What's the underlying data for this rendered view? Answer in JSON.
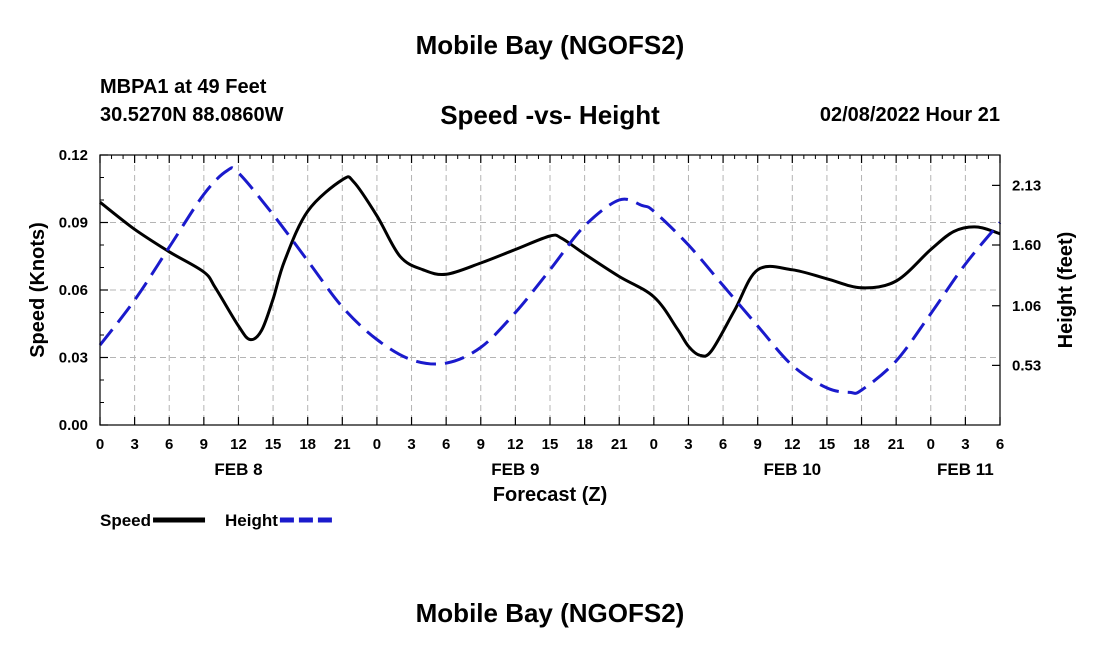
{
  "header": {
    "title": "Mobile Bay (NGOFS2)",
    "station": "MBPA1 at 49 Feet",
    "coords": "30.5270N  88.0860W",
    "subtitle": "Speed -vs- Height",
    "date": "02/08/2022 Hour 21"
  },
  "footer": {
    "title": "Mobile Bay (NGOFS2)"
  },
  "chart_data": {
    "type": "line",
    "xlabel": "Forecast (Z)",
    "ylabel": "Speed (Knots)",
    "y2label": "Height (feet)",
    "x_range_hours": [
      0,
      78
    ],
    "ylim": [
      0,
      0.12
    ],
    "y2lim": [
      0,
      2.4
    ],
    "x_ticks": [
      {
        "h": 0,
        "label": "0"
      },
      {
        "h": 3,
        "label": "3"
      },
      {
        "h": 6,
        "label": "6"
      },
      {
        "h": 9,
        "label": "9"
      },
      {
        "h": 12,
        "label": "12"
      },
      {
        "h": 15,
        "label": "15"
      },
      {
        "h": 18,
        "label": "18"
      },
      {
        "h": 21,
        "label": "21"
      },
      {
        "h": 24,
        "label": "0"
      },
      {
        "h": 27,
        "label": "3"
      },
      {
        "h": 30,
        "label": "6"
      },
      {
        "h": 33,
        "label": "9"
      },
      {
        "h": 36,
        "label": "12"
      },
      {
        "h": 39,
        "label": "15"
      },
      {
        "h": 42,
        "label": "18"
      },
      {
        "h": 45,
        "label": "21"
      },
      {
        "h": 48,
        "label": "0"
      },
      {
        "h": 51,
        "label": "3"
      },
      {
        "h": 54,
        "label": "6"
      },
      {
        "h": 57,
        "label": "9"
      },
      {
        "h": 60,
        "label": "12"
      },
      {
        "h": 63,
        "label": "15"
      },
      {
        "h": 66,
        "label": "18"
      },
      {
        "h": 69,
        "label": "21"
      },
      {
        "h": 72,
        "label": "0"
      },
      {
        "h": 75,
        "label": "3"
      },
      {
        "h": 78,
        "label": "6"
      }
    ],
    "day_labels": [
      {
        "h": 12,
        "label": "FEB 8"
      },
      {
        "h": 36,
        "label": "FEB 9"
      },
      {
        "h": 60,
        "label": "FEB 10"
      },
      {
        "h": 75,
        "label": "FEB 11"
      }
    ],
    "y_ticks": [
      {
        "v": 0.0,
        "label": "0.00"
      },
      {
        "v": 0.03,
        "label": "0.03"
      },
      {
        "v": 0.06,
        "label": "0.06"
      },
      {
        "v": 0.09,
        "label": "0.09"
      },
      {
        "v": 0.12,
        "label": "0.12"
      }
    ],
    "y2_ticks": [
      {
        "v": 0.53,
        "label": "0.53"
      },
      {
        "v": 1.06,
        "label": "1.06"
      },
      {
        "v": 1.6,
        "label": "1.60"
      },
      {
        "v": 2.13,
        "label": "2.13"
      }
    ],
    "series": [
      {
        "name": "Speed",
        "axis": "left",
        "color": "#000000",
        "dash": "solid",
        "x": [
          0,
          3,
          6,
          9,
          10,
          12,
          13,
          14,
          15,
          16,
          18,
          21,
          22,
          24,
          26,
          28,
          30,
          33,
          36,
          39,
          40,
          42,
          45,
          48,
          50,
          51,
          52,
          53,
          55,
          57,
          60,
          63,
          66,
          69,
          72,
          74,
          76,
          78
        ],
        "values": [
          0.099,
          0.087,
          0.077,
          0.068,
          0.061,
          0.044,
          0.038,
          0.042,
          0.056,
          0.073,
          0.095,
          0.109,
          0.108,
          0.093,
          0.075,
          0.069,
          0.067,
          0.072,
          0.078,
          0.084,
          0.083,
          0.076,
          0.066,
          0.057,
          0.043,
          0.035,
          0.031,
          0.033,
          0.051,
          0.069,
          0.069,
          0.065,
          0.061,
          0.064,
          0.078,
          0.086,
          0.088,
          0.085
        ]
      },
      {
        "name": "Height",
        "axis": "right",
        "color": "#1a1acc",
        "dash": "dashed",
        "x": [
          0,
          3,
          6,
          9,
          11,
          12,
          15,
          18,
          21,
          24,
          27,
          30,
          33,
          36,
          39,
          42,
          45,
          47,
          48,
          51,
          54,
          57,
          60,
          63,
          65,
          66,
          69,
          72,
          75,
          78
        ],
        "values": [
          0.71,
          1.11,
          1.58,
          2.05,
          2.26,
          2.24,
          1.87,
          1.46,
          1.05,
          0.76,
          0.58,
          0.55,
          0.69,
          1.0,
          1.38,
          1.77,
          2.0,
          1.95,
          1.9,
          1.6,
          1.24,
          0.88,
          0.53,
          0.33,
          0.29,
          0.31,
          0.57,
          0.99,
          1.43,
          1.8
        ]
      }
    ],
    "legend": [
      {
        "label": "Speed",
        "color": "#000000",
        "dash": "solid"
      },
      {
        "label": "Height",
        "color": "#1a1acc",
        "dash": "dashed"
      }
    ]
  }
}
